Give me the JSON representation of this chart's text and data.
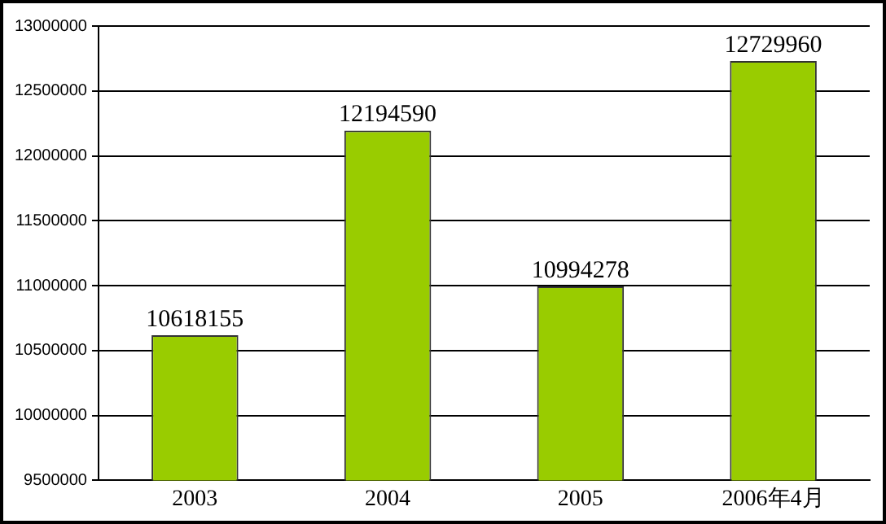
{
  "chart_data": {
    "type": "bar",
    "categories": [
      "2003",
      "2004",
      "2005",
      "2006年4月"
    ],
    "values": [
      10618155,
      12194590,
      10994278,
      12729960
    ],
    "color": "#99cc00",
    "ylim": [
      9500000,
      13000000
    ],
    "yticks": [
      9500000,
      10000000,
      10500000,
      11000000,
      11500000,
      12000000,
      12500000,
      13000000
    ],
    "grid": "y",
    "data_labels": true
  }
}
